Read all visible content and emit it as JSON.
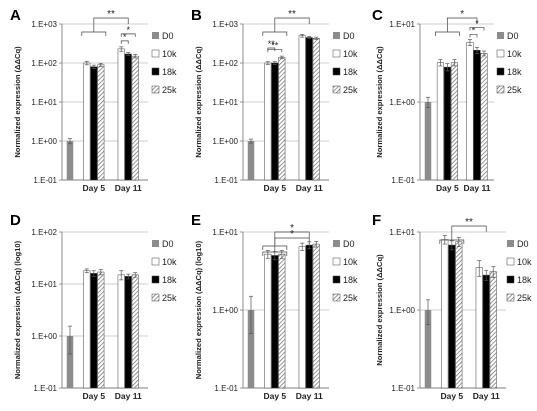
{
  "chart_data": [
    {
      "panel": "A",
      "type": "bar",
      "yscale": "log",
      "ylim": [
        0.1,
        1000
      ],
      "yticks": [
        "1.E-01",
        "1.E+00",
        "1.E+01",
        "1.E+02",
        "1.E+03"
      ],
      "ylabel": "Normalized expression (ΔΔCq)",
      "categories": [
        "Day 5",
        "Day 11"
      ],
      "series": [
        {
          "name": "D0",
          "values": [
            1.0,
            null
          ],
          "errors": [
            0.15,
            null
          ]
        },
        {
          "name": "10k",
          "values": [
            100,
            230
          ],
          "errors": [
            10,
            30
          ]
        },
        {
          "name": "18k",
          "values": [
            80,
            170
          ],
          "errors": [
            8,
            15
          ]
        },
        {
          "name": "25k",
          "values": [
            90,
            150
          ],
          "errors": [
            8,
            15
          ]
        }
      ],
      "significance": [
        {
          "label": "**",
          "span": [
            "Day 5",
            "Day 11"
          ]
        },
        {
          "label": "*",
          "span": [
            "10k",
            "18k"
          ],
          "category": "Day 11"
        },
        {
          "label": "*",
          "span": [
            "10k",
            "25k"
          ],
          "category": "Day 11"
        }
      ]
    },
    {
      "panel": "B",
      "type": "bar",
      "yscale": "log",
      "ylim": [
        0.1,
        1000
      ],
      "yticks": [
        "1.E-01",
        "1.E+00",
        "1.E+01",
        "1.E+02",
        "1.E+03"
      ],
      "ylabel": "Normalized expression (ΔΔCq)",
      "categories": [
        "Day 5",
        "Day 11"
      ],
      "series": [
        {
          "name": "D0",
          "values": [
            1.0,
            null
          ],
          "errors": [
            0.12,
            null
          ]
        },
        {
          "name": "10k",
          "values": [
            100,
            500
          ],
          "errors": [
            8,
            40
          ]
        },
        {
          "name": "18k",
          "values": [
            100,
            450
          ],
          "errors": [
            8,
            30
          ]
        },
        {
          "name": "25k",
          "values": [
            140,
            430
          ],
          "errors": [
            10,
            30
          ]
        }
      ],
      "significance": [
        {
          "label": "**",
          "span": [
            "Day 5",
            "Day 11"
          ]
        },
        {
          "label": "**",
          "span": [
            "10k",
            "25k"
          ],
          "category": "Day 5"
        },
        {
          "label": "**",
          "span": [
            "10k",
            "18k"
          ],
          "category": "Day 5"
        }
      ]
    },
    {
      "panel": "C",
      "type": "bar",
      "yscale": "log",
      "ylim": [
        0.1,
        10
      ],
      "yticks": [
        "1.E-01",
        "1.E+00",
        "1.E+01"
      ],
      "ylabel": "Normalized expression (ΔΔCq)",
      "categories": [
        "Day 5",
        "Day 11"
      ],
      "series": [
        {
          "name": "D0",
          "values": [
            1.0,
            null
          ],
          "errors": [
            0.15,
            null
          ]
        },
        {
          "name": "10k",
          "values": [
            3.2,
            5.8
          ],
          "errors": [
            0.3,
            0.5
          ]
        },
        {
          "name": "18k",
          "values": [
            2.8,
            4.6
          ],
          "errors": [
            0.3,
            0.4
          ]
        },
        {
          "name": "25k",
          "values": [
            3.2,
            4.2
          ],
          "errors": [
            0.3,
            0.3
          ]
        }
      ],
      "significance": [
        {
          "label": "*",
          "span": [
            "Day 5",
            "Day 11"
          ]
        },
        {
          "label": "*",
          "span": [
            "10k",
            "18k"
          ],
          "category": "Day 11"
        },
        {
          "label": "*",
          "span": [
            "10k",
            "25k"
          ],
          "category": "Day 11"
        }
      ]
    },
    {
      "panel": "D",
      "type": "bar",
      "yscale": "log",
      "ylim": [
        0.1,
        100
      ],
      "yticks": [
        "1.E-01",
        "1.E+00",
        "1.E+01",
        "1.E+02"
      ],
      "ylabel": "Normalized expression (ΔΔCq) (log10)",
      "categories": [
        "Day 5",
        "Day 11"
      ],
      "series": [
        {
          "name": "D0",
          "values": [
            1.0,
            null
          ],
          "errors": [
            0.55,
            null
          ]
        },
        {
          "name": "10k",
          "values": [
            18,
            15
          ],
          "errors": [
            1.5,
            3
          ]
        },
        {
          "name": "18k",
          "values": [
            16,
            14
          ],
          "errors": [
            2,
            1.5
          ]
        },
        {
          "name": "25k",
          "values": [
            17,
            15
          ],
          "errors": [
            2,
            1.5
          ]
        }
      ],
      "significance": []
    },
    {
      "panel": "E",
      "type": "bar",
      "yscale": "log",
      "ylim": [
        0.1,
        10
      ],
      "yticks": [
        "1.E-01",
        "1.E+00",
        "1.E+01"
      ],
      "ylabel": "Normalized expression (ΔΔCq) (log10)",
      "categories": [
        "Day 5",
        "Day 11"
      ],
      "series": [
        {
          "name": "D0",
          "values": [
            1.0,
            null
          ],
          "errors": [
            0.5,
            null
          ]
        },
        {
          "name": "10k",
          "values": [
            5.2,
            6.5
          ],
          "errors": [
            0.6,
            0.7
          ]
        },
        {
          "name": "18k",
          "values": [
            5.0,
            6.8
          ],
          "errors": [
            0.6,
            0.7
          ]
        },
        {
          "name": "25k",
          "values": [
            5.2,
            7.0
          ],
          "errors": [
            0.6,
            0.6
          ]
        }
      ],
      "significance": [
        {
          "label": "*",
          "span": [
            "Day 5",
            "Day 11"
          ],
          "level": 1
        },
        {
          "label": "*",
          "span": [
            "Day 5",
            "Day 11"
          ],
          "level": 2
        }
      ]
    },
    {
      "panel": "F",
      "type": "bar",
      "yscale": "log",
      "ylim": [
        0.1,
        10
      ],
      "yticks": [
        "1.E-01",
        "1.E+00",
        "1.E+01"
      ],
      "ylabel": "Normalized expression (ΔΔCq)",
      "categories": [
        "Day 5",
        "Day 11"
      ],
      "series": [
        {
          "name": "D0",
          "values": [
            1.0,
            null
          ],
          "errors": [
            0.35,
            null
          ]
        },
        {
          "name": "10k",
          "values": [
            8.0,
            3.5
          ],
          "errors": [
            1.0,
            0.8
          ]
        },
        {
          "name": "18k",
          "values": [
            6.8,
            2.8
          ],
          "errors": [
            0.9,
            0.4
          ]
        },
        {
          "name": "25k",
          "values": [
            7.5,
            3.1
          ],
          "errors": [
            1.0,
            0.5
          ]
        }
      ],
      "significance": [
        {
          "label": "**",
          "span": [
            "Day 5",
            "Day 11"
          ]
        }
      ]
    }
  ],
  "series_fills": {
    "D0": "#8c8c8c",
    "10k": "#ffffff",
    "18k": "#000000",
    "25k": "hatch"
  },
  "colors": {
    "axis": "#7f7f7f",
    "grid": "#bfbfbf",
    "bar_stroke": "#404040",
    "text": "#222222"
  }
}
